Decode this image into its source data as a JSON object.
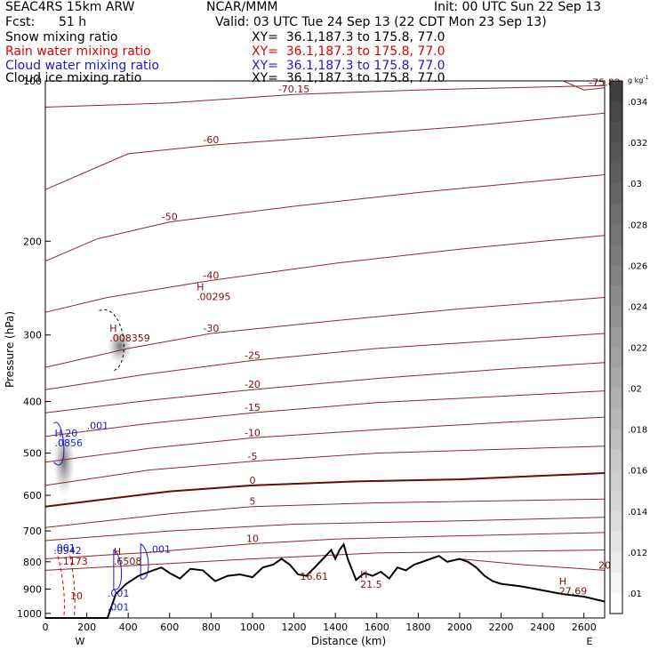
{
  "header": {
    "model": "SEAC4RS 15km ARW",
    "center": "NCAR/MMM",
    "init": "Init: 00 UTC Sun 22 Sep 13",
    "fcst_label": "Fcst:",
    "fcst_value": "51 h",
    "valid": "Valid: 03 UTC Tue 24 Sep 13 (22 CDT Mon 23 Sep 13)"
  },
  "fields": [
    {
      "name": "Snow mixing ratio",
      "xy": "XY=  36.1,187.3 to 175.8, 77.0",
      "color": "#000000"
    },
    {
      "name": "Rain water mixing ratio",
      "xy": "XY=  36.1,187.3 to 175.8, 77.0",
      "color": "#e00000"
    },
    {
      "name": "Cloud water mixing ratio",
      "xy": "XY=  36.1,187.3 to 175.8, 77.0",
      "color": "#1a1acc"
    },
    {
      "name": "Cloud ice mixing ratio",
      "xy": "XY=  36.1,187.3 to 175.8, 77.0",
      "color": "#000000"
    }
  ],
  "colorbar": {
    "unit": "g kg",
    "unit_exp": "-1",
    "labels": [
      ".034",
      ".032",
      ".03",
      ".028",
      ".026",
      ".024",
      ".022",
      ".02",
      ".018",
      ".016",
      ".014",
      ".012",
      ".01"
    ],
    "values": [
      0.034,
      0.032,
      0.03,
      0.028,
      0.026,
      0.024,
      0.022,
      0.02,
      0.018,
      0.016,
      0.014,
      0.012,
      0.01
    ]
  },
  "chart_data": {
    "type": "line",
    "xlabel": "Distance (km)",
    "ylabel": "Pressure (hPa)",
    "xlim": [
      0,
      2700
    ],
    "ylim": [
      100,
      1020
    ],
    "y_scale": "log",
    "x_ticks": [
      0,
      200,
      400,
      600,
      800,
      1000,
      1200,
      1400,
      1600,
      1800,
      2000,
      2200,
      2400,
      2600
    ],
    "y_ticks": [
      100,
      200,
      300,
      400,
      500,
      600,
      700,
      800,
      900,
      1000
    ],
    "x_end_labels": {
      "left": "W",
      "right": "E"
    },
    "temperature_contours": [
      {
        "label": "-70.15",
        "points": [
          [
            0,
            112
          ],
          [
            600,
            110
          ],
          [
            1200,
            106
          ],
          [
            1800,
            104
          ],
          [
            2700,
            102
          ]
        ]
      },
      {
        "label": "-75.82",
        "points": [
          [
            2500,
            100
          ],
          [
            2600,
            104
          ],
          [
            2700,
            103
          ]
        ]
      },
      {
        "label": "-60",
        "points": [
          [
            0,
            160
          ],
          [
            400,
            137
          ],
          [
            800,
            132
          ],
          [
            1400,
            127
          ],
          [
            2000,
            122
          ],
          [
            2700,
            115
          ]
        ]
      },
      {
        "label": "-50",
        "points": [
          [
            0,
            218
          ],
          [
            250,
            198
          ],
          [
            600,
            184
          ],
          [
            1200,
            172
          ],
          [
            1800,
            162
          ],
          [
            2700,
            150
          ]
        ]
      },
      {
        "label": "-40",
        "points": [
          [
            0,
            272
          ],
          [
            300,
            255
          ],
          [
            800,
            237
          ],
          [
            1400,
            220
          ],
          [
            2000,
            207
          ],
          [
            2400,
            200
          ],
          [
            2700,
            195
          ]
        ]
      },
      {
        "label": "-30",
        "points": [
          [
            0,
            345
          ],
          [
            400,
            318
          ],
          [
            800,
            298
          ],
          [
            1400,
            282
          ],
          [
            2000,
            268
          ],
          [
            2700,
            255
          ]
        ]
      },
      {
        "label": "-25",
        "points": [
          [
            0,
            380
          ],
          [
            500,
            355
          ],
          [
            1000,
            335
          ],
          [
            1600,
            318
          ],
          [
            2700,
            298
          ]
        ]
      },
      {
        "label": "-20",
        "points": [
          [
            0,
            420
          ],
          [
            500,
            398
          ],
          [
            1000,
            380
          ],
          [
            1600,
            362
          ],
          [
            2200,
            348
          ],
          [
            2700,
            338
          ]
        ]
      },
      {
        "label": "-15",
        "points": [
          [
            0,
            465
          ],
          [
            500,
            440
          ],
          [
            1000,
            420
          ],
          [
            1600,
            402
          ],
          [
            2700,
            382
          ]
        ]
      },
      {
        "label": "-10",
        "points": [
          [
            0,
            520
          ],
          [
            500,
            490
          ],
          [
            1000,
            468
          ],
          [
            1600,
            452
          ],
          [
            2200,
            438
          ],
          [
            2700,
            428
          ]
        ]
      },
      {
        "label": "-5",
        "points": [
          [
            0,
            575
          ],
          [
            500,
            538
          ],
          [
            1000,
            518
          ],
          [
            1600,
            500
          ],
          [
            2700,
            485
          ]
        ]
      },
      {
        "label": "0",
        "points": [
          [
            0,
            630
          ],
          [
            600,
            590
          ],
          [
            1000,
            575
          ],
          [
            1500,
            565
          ],
          [
            2000,
            560
          ],
          [
            2700,
            545
          ]
        ]
      },
      {
        "label": "5",
        "points": [
          [
            0,
            690
          ],
          [
            600,
            650
          ],
          [
            1000,
            630
          ],
          [
            1600,
            620
          ],
          [
            2700,
            610
          ]
        ]
      },
      {
        "label": "",
        "points": [
          [
            0,
            730
          ],
          [
            600,
            700
          ],
          [
            1200,
            680
          ],
          [
            2000,
            670
          ],
          [
            2700,
            660
          ]
        ]
      },
      {
        "label": "10",
        "points": [
          [
            0,
            790
          ],
          [
            500,
            768
          ],
          [
            1000,
            740
          ],
          [
            1400,
            725
          ],
          [
            2000,
            715
          ],
          [
            2700,
            705
          ]
        ]
      },
      {
        "label": "",
        "points": [
          [
            0,
            830
          ],
          [
            500,
            810
          ],
          [
            1000,
            790
          ],
          [
            1600,
            770
          ],
          [
            2700,
            760
          ]
        ]
      },
      {
        "label": "20",
        "points": [
          [
            2000,
            790
          ],
          [
            2300,
            810
          ],
          [
            2700,
            830
          ]
        ]
      }
    ],
    "terrain": [
      [
        0,
        1020
      ],
      [
        300,
        1020
      ],
      [
        340,
        920
      ],
      [
        390,
        880
      ],
      [
        450,
        850
      ],
      [
        520,
        830
      ],
      [
        560,
        820
      ],
      [
        600,
        840
      ],
      [
        650,
        860
      ],
      [
        700,
        825
      ],
      [
        760,
        830
      ],
      [
        820,
        870
      ],
      [
        880,
        850
      ],
      [
        940,
        845
      ],
      [
        1000,
        855
      ],
      [
        1050,
        820
      ],
      [
        1100,
        810
      ],
      [
        1140,
        790
      ],
      [
        1180,
        810
      ],
      [
        1220,
        845
      ],
      [
        1260,
        850
      ],
      [
        1300,
        820
      ],
      [
        1340,
        790
      ],
      [
        1360,
        775
      ],
      [
        1380,
        760
      ],
      [
        1400,
        790
      ],
      [
        1420,
        760
      ],
      [
        1440,
        742
      ],
      [
        1460,
        790
      ],
      [
        1500,
        865
      ],
      [
        1540,
        840
      ],
      [
        1580,
        850
      ],
      [
        1620,
        835
      ],
      [
        1660,
        860
      ],
      [
        1700,
        820
      ],
      [
        1740,
        830
      ],
      [
        1780,
        810
      ],
      [
        1820,
        800
      ],
      [
        1860,
        790
      ],
      [
        1900,
        780
      ],
      [
        1940,
        800
      ],
      [
        2000,
        790
      ],
      [
        2040,
        800
      ],
      [
        2080,
        820
      ],
      [
        2120,
        850
      ],
      [
        2160,
        870
      ],
      [
        2200,
        880
      ],
      [
        2300,
        890
      ],
      [
        2400,
        905
      ],
      [
        2500,
        920
      ],
      [
        2600,
        930
      ],
      [
        2700,
        950
      ]
    ],
    "max_labels": [
      {
        "text": "H",
        "value": ".00295",
        "x": 730,
        "y": 255
      },
      {
        "text": "H",
        "value": ".008359",
        "x": 310,
        "y": 305
      },
      {
        "text": "H 20",
        "value": ".0856",
        "x": 45,
        "y": 480
      },
      {
        "text": "H",
        "value": ".6508",
        "x": 330,
        "y": 800
      },
      {
        "text": "",
        "value": "16.61",
        "x": 1230,
        "y": 855
      },
      {
        "text": "H",
        "value": "21.5",
        "x": 1520,
        "y": 885
      },
      {
        "text": "H",
        "value": "27.69",
        "x": 2480,
        "y": 910
      },
      {
        "text": "",
        "value": ".001",
        "x": 200,
        "y": 445
      },
      {
        "text": "",
        "value": ".001",
        "x": 500,
        "y": 760
      },
      {
        "text": "",
        "value": ".001",
        "x": 300,
        "y": 920
      },
      {
        "text": "",
        "value": ".001",
        "x": 300,
        "y": 975
      },
      {
        "text": "",
        "value": ".001",
        "x": 40,
        "y": 755
      },
      {
        "text": "",
        "value": ".0942",
        "x": 40,
        "y": 765
      },
      {
        "text": "",
        "value": ".1173",
        "x": 70,
        "y": 800
      },
      {
        "text": "",
        "value": "10",
        "x": 120,
        "y": 930
      }
    ]
  }
}
